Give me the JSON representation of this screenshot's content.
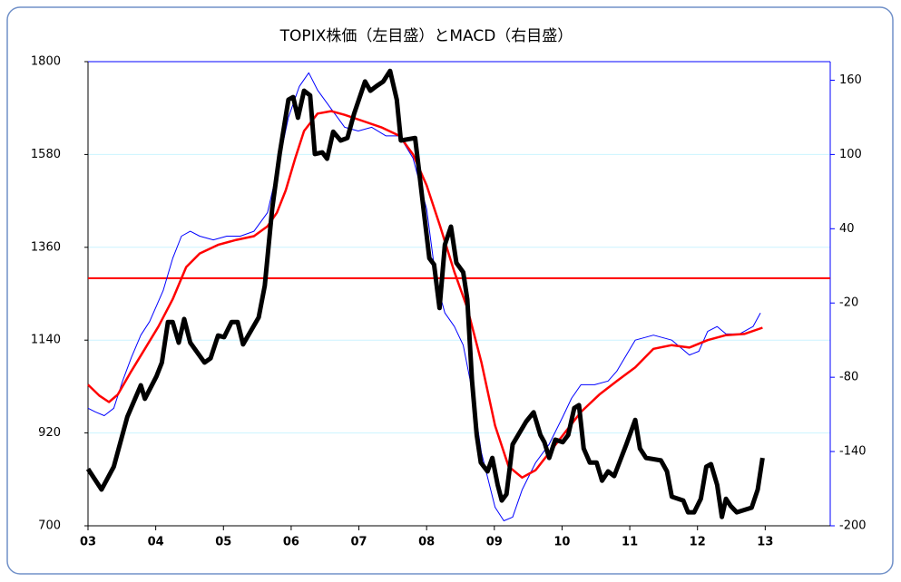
{
  "chart_data": {
    "type": "line",
    "title": "TOPIX株価（左目盛）とMACD（右目盛）",
    "xlim": [
      2003,
      2013.96
    ],
    "xticks": [
      {
        "value": 2003,
        "label": "03"
      },
      {
        "value": 2004,
        "label": "04"
      },
      {
        "value": 2005,
        "label": "05"
      },
      {
        "value": 2006,
        "label": "06"
      },
      {
        "value": 2007,
        "label": "07"
      },
      {
        "value": 2008,
        "label": "08"
      },
      {
        "value": 2009,
        "label": "09"
      },
      {
        "value": 2010,
        "label": "10"
      },
      {
        "value": 2011,
        "label": "11"
      },
      {
        "value": 2012,
        "label": "12"
      },
      {
        "value": 2013,
        "label": "13"
      }
    ],
    "ylim": [
      700,
      1800
    ],
    "yticks": [
      700,
      920,
      1140,
      1360,
      1580,
      1800
    ],
    "y2lim": [
      -200,
      175
    ],
    "y2ticks": [
      -200,
      -140,
      -80,
      -20,
      40,
      100,
      160
    ],
    "grid": true,
    "grid_color": "#ccf4ff",
    "y2_axis_color": "#0000ff",
    "reference_line": {
      "axis": "y2",
      "value": 0,
      "color": "#ff0000"
    },
    "series": [
      {
        "color": "#0000ff",
        "axis": "y2",
        "line_width": 1,
        "x": [
          2003.0,
          2003.11,
          2003.24,
          2003.38,
          2003.51,
          2003.64,
          2003.78,
          2003.91,
          2004.11,
          2004.25,
          2004.38,
          2004.51,
          2004.65,
          2004.85,
          2005.05,
          2005.25,
          2005.45,
          2005.65,
          2005.79,
          2005.96,
          2006.12,
          2006.26,
          2006.39,
          2006.59,
          2006.79,
          2006.99,
          2007.19,
          2007.4,
          2007.6,
          2007.8,
          2008.0,
          2008.14,
          2008.27,
          2008.41,
          2008.54,
          2008.67,
          2008.81,
          2009.01,
          2009.14,
          2009.27,
          2009.41,
          2009.61,
          2009.81,
          2010.01,
          2010.14,
          2010.28,
          2010.48,
          2010.68,
          2010.81,
          2011.08,
          2011.35,
          2011.62,
          2011.88,
          2012.02,
          2012.15,
          2012.29,
          2012.42,
          2012.62,
          2012.82,
          2012.93
        ],
        "values": [
          -105,
          -108,
          -111,
          -105,
          -83,
          -64,
          -46,
          -35,
          -10,
          16,
          34,
          38,
          34,
          31,
          34,
          34,
          38,
          53,
          86,
          130,
          155,
          166,
          152,
          137,
          122,
          119,
          122,
          115,
          115,
          97,
          56,
          -2,
          -28,
          -39,
          -54,
          -90,
          -141,
          -185,
          -196,
          -193,
          -171,
          -149,
          -134,
          -112,
          -97,
          -86,
          -86,
          -83,
          -75,
          -50,
          -46,
          -50,
          -62,
          -59,
          -43,
          -39,
          -45,
          -45,
          -39,
          -28
        ]
      },
      {
        "color": "#ff0000",
        "axis": "y2",
        "line_width": 2.5,
        "x": [
          2003.0,
          2003.17,
          2003.31,
          2003.44,
          2003.64,
          2003.84,
          2004.04,
          2004.25,
          2004.45,
          2004.65,
          2004.92,
          2005.19,
          2005.45,
          2005.65,
          2005.79,
          2005.92,
          2006.06,
          2006.19,
          2006.39,
          2006.59,
          2006.79,
          2007.06,
          2007.33,
          2007.6,
          2007.8,
          2008.0,
          2008.2,
          2008.41,
          2008.6,
          2008.81,
          2009.01,
          2009.21,
          2009.41,
          2009.61,
          2009.81,
          2010.01,
          2010.28,
          2010.55,
          2010.81,
          2011.08,
          2011.35,
          2011.62,
          2011.88,
          2012.15,
          2012.42,
          2012.69,
          2012.96
        ],
        "values": [
          -86,
          -95,
          -100,
          -94,
          -75,
          -57,
          -39,
          -17,
          9,
          20,
          27,
          31,
          34,
          42,
          53,
          71,
          97,
          119,
          133,
          135,
          132,
          127,
          122,
          115,
          100,
          75,
          42,
          5,
          -24,
          -68,
          -119,
          -152,
          -161,
          -155,
          -141,
          -127,
          -108,
          -94,
          -83,
          -72,
          -57,
          -54,
          -56,
          -50,
          -46,
          -45,
          -40
        ]
      },
      {
        "color": "#000000",
        "axis": "y",
        "line_width": 5,
        "x": [
          2003.0,
          2003.2,
          2003.38,
          2003.58,
          2003.78,
          2003.84,
          2004.01,
          2004.09,
          2004.18,
          2004.25,
          2004.34,
          2004.42,
          2004.51,
          2004.72,
          2004.81,
          2004.92,
          2005.01,
          2005.12,
          2005.21,
          2005.29,
          2005.52,
          2005.61,
          2005.72,
          2005.83,
          2005.96,
          2006.03,
          2006.1,
          2006.19,
          2006.28,
          2006.35,
          2006.46,
          2006.53,
          2006.62,
          2006.73,
          2006.83,
          2006.93,
          2007.09,
          2007.17,
          2007.26,
          2007.36,
          2007.46,
          2007.56,
          2007.62,
          2007.83,
          2007.89,
          2008.04,
          2008.11,
          2008.19,
          2008.27,
          2008.36,
          2008.44,
          2008.54,
          2008.6,
          2008.67,
          2008.74,
          2008.8,
          2008.9,
          2008.97,
          2009.05,
          2009.11,
          2009.18,
          2009.27,
          2009.47,
          2009.58,
          2009.68,
          2009.74,
          2009.81,
          2009.9,
          2010.01,
          2010.09,
          2010.18,
          2010.25,
          2010.32,
          2010.41,
          2010.51,
          2010.59,
          2010.68,
          2010.77,
          2010.95,
          2011.08,
          2011.15,
          2011.24,
          2011.46,
          2011.55,
          2011.62,
          2011.79,
          2011.86,
          2011.95,
          2012.05,
          2012.13,
          2012.2,
          2012.29,
          2012.36,
          2012.42,
          2012.49,
          2012.58,
          2012.8,
          2012.89,
          2012.96
        ],
        "values": [
          835,
          786,
          840,
          958,
          1033,
          1001,
          1054,
          1087,
          1183,
          1183,
          1134,
          1190,
          1134,
          1087,
          1097,
          1151,
          1147,
          1183,
          1183,
          1130,
          1194,
          1269,
          1452,
          1581,
          1710,
          1716,
          1667,
          1731,
          1720,
          1581,
          1585,
          1570,
          1634,
          1613,
          1619,
          1677,
          1753,
          1731,
          1742,
          1753,
          1778,
          1710,
          1613,
          1619,
          1538,
          1334,
          1319,
          1216,
          1366,
          1409,
          1323,
          1301,
          1237,
          1044,
          915,
          850,
          829,
          861,
          797,
          760,
          775,
          893,
          947,
          969,
          915,
          898,
          861,
          904,
          898,
          915,
          979,
          986,
          883,
          850,
          850,
          807,
          829,
          818,
          893,
          951,
          883,
          861,
          855,
          829,
          769,
          760,
          732,
          732,
          764,
          840,
          846,
          797,
          721,
          764,
          747,
          732,
          743,
          786,
          861
        ]
      }
    ]
  }
}
